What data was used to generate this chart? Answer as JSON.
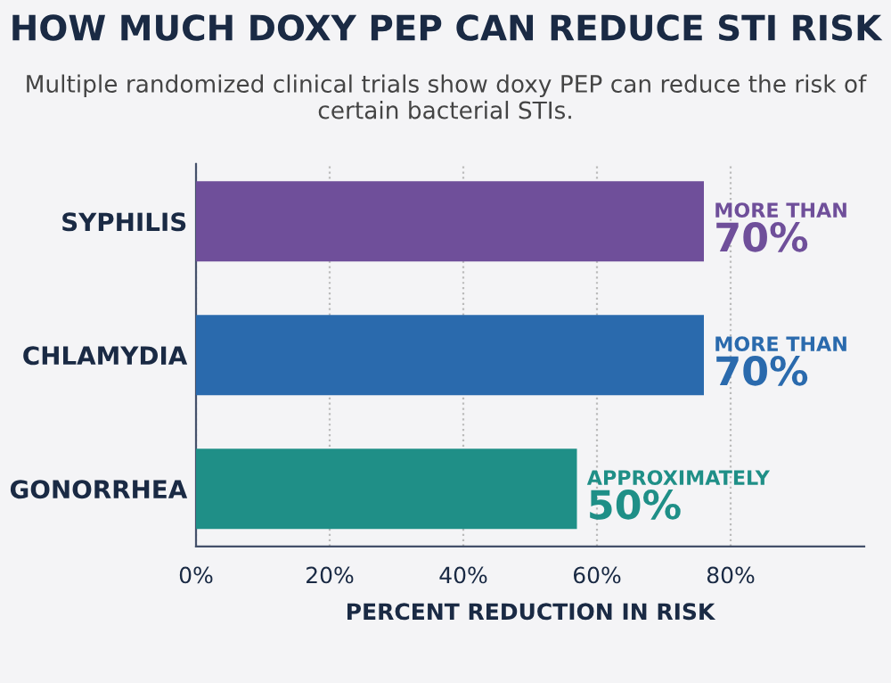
{
  "chart_data": {
    "type": "bar",
    "orientation": "horizontal",
    "title": "HOW MUCH DOXY PEP CAN REDUCE STI RISK",
    "subtitle": "Multiple randomized clinical trials show doxy PEP can reduce the risk of certain bacterial STIs.",
    "xlabel": "PERCENT REDUCTION IN RISK",
    "categories": [
      "SYPHILIS",
      "CHLAMYDIA",
      "GONORRHEA"
    ],
    "values": [
      76,
      76,
      57
    ],
    "colors": [
      "#6f4f9a",
      "#2a6aad",
      "#1f8f87"
    ],
    "value_labels": [
      "MORE THAN 70%",
      "MORE THAN 70%",
      "APPROXIMATELY 50%"
    ],
    "xlim": [
      0,
      100
    ],
    "xticks": [
      {
        "value": 0,
        "label": "0%"
      },
      {
        "value": 20,
        "label": "20%"
      },
      {
        "value": 40,
        "label": "40%"
      },
      {
        "value": 60,
        "label": "60%"
      },
      {
        "value": 80,
        "label": "80%"
      }
    ],
    "grid": "x"
  }
}
